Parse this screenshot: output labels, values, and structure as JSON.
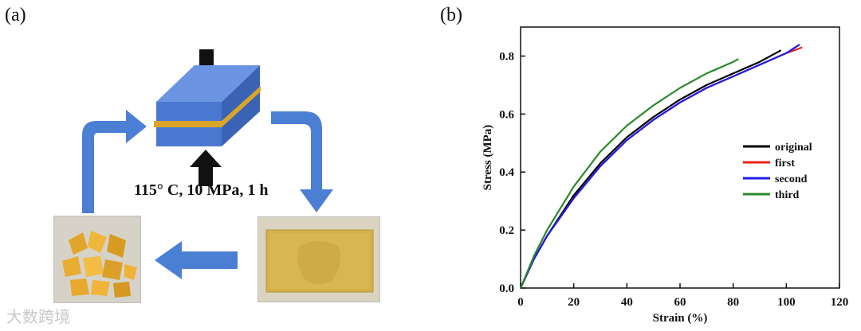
{
  "panels": {
    "a_label": "(a)",
    "b_label": "(b)"
  },
  "process": {
    "conditions": "115° C, 10 MPa, 1 h",
    "colors": {
      "block": "#4a78d0",
      "block_top": "#6b95e3",
      "resin": "#d9a528",
      "arrow": "#4a7fd4"
    }
  },
  "watermark": "大数跨境",
  "chart_data": {
    "type": "line",
    "xlabel": "Strain (%)",
    "ylabel": "Stress (MPa)",
    "xlim": [
      0,
      120
    ],
    "ylim": [
      0,
      0.9
    ],
    "xticks": [
      "0",
      "20",
      "40",
      "60",
      "80",
      "100",
      "120"
    ],
    "yticks": [
      "0.0",
      "0.2",
      "0.4",
      "0.6",
      "0.8"
    ],
    "grid": false,
    "legend_position": "right-middle",
    "series": [
      {
        "name": "original",
        "color": "#000000",
        "x": [
          0,
          5,
          10,
          20,
          30,
          40,
          50,
          60,
          70,
          80,
          90,
          98
        ],
        "y": [
          0,
          0.1,
          0.18,
          0.32,
          0.43,
          0.52,
          0.59,
          0.65,
          0.7,
          0.74,
          0.78,
          0.82
        ]
      },
      {
        "name": "first",
        "color": "#e8221c",
        "x": [
          0,
          5,
          10,
          20,
          30,
          40,
          50,
          60,
          70,
          80,
          90,
          100,
          106
        ],
        "y": [
          0,
          0.1,
          0.18,
          0.31,
          0.42,
          0.51,
          0.58,
          0.64,
          0.69,
          0.73,
          0.77,
          0.81,
          0.83
        ]
      },
      {
        "name": "second",
        "color": "#1c1ce6",
        "x": [
          0,
          5,
          10,
          20,
          30,
          40,
          50,
          60,
          70,
          80,
          90,
          100,
          105
        ],
        "y": [
          0,
          0.1,
          0.18,
          0.31,
          0.42,
          0.51,
          0.58,
          0.64,
          0.69,
          0.73,
          0.77,
          0.81,
          0.84
        ]
      },
      {
        "name": "third",
        "color": "#2a8a2a",
        "x": [
          0,
          5,
          10,
          20,
          30,
          40,
          50,
          60,
          70,
          80,
          82
        ],
        "y": [
          0,
          0.11,
          0.2,
          0.35,
          0.47,
          0.56,
          0.63,
          0.69,
          0.74,
          0.78,
          0.79
        ]
      }
    ]
  }
}
